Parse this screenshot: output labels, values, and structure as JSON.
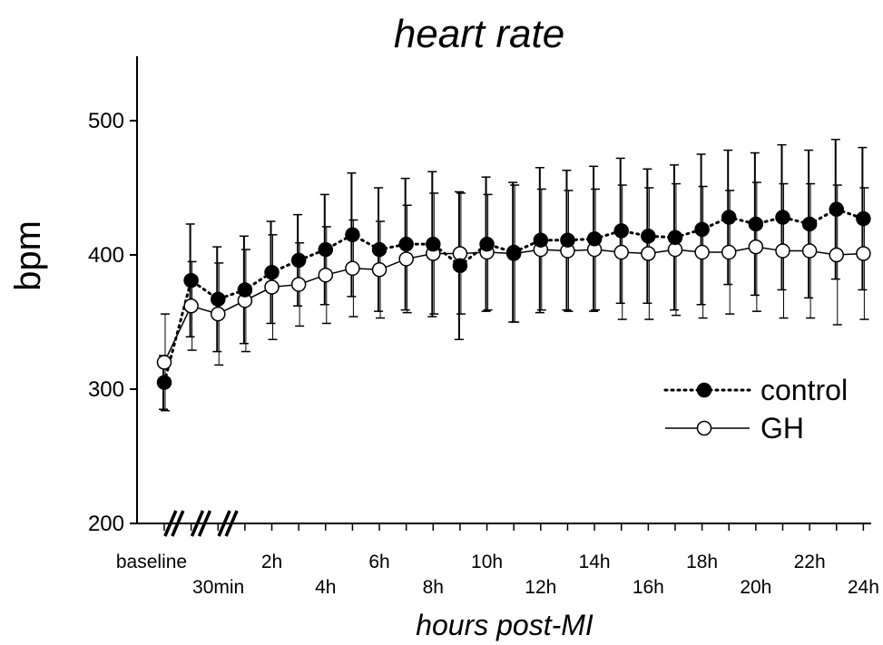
{
  "chart_data": {
    "type": "line",
    "title": "heart rate",
    "xlabel": "hours post-MI",
    "ylabel": "bpm",
    "ylim": [
      200,
      550
    ],
    "yticks": [
      200,
      300,
      400,
      500
    ],
    "x": [
      "baseline",
      "30min",
      "1h",
      "1.5h",
      "2h",
      "3h",
      "4h",
      "5h",
      "6h",
      "7h",
      "8h",
      "9h",
      "10h",
      "11h",
      "12h",
      "13h",
      "14h",
      "15h",
      "16h",
      "17h",
      "18h",
      "19h",
      "20h",
      "21h",
      "22h",
      "23h",
      "24h"
    ],
    "xtick_labels": [
      {
        "index": 0,
        "label": "baseline",
        "row": 1
      },
      {
        "index": 1,
        "label": "30min",
        "row": 2
      },
      {
        "index": 4,
        "label": "2h",
        "row": 1
      },
      {
        "index": 6,
        "label": "4h",
        "row": 2
      },
      {
        "index": 8,
        "label": "6h",
        "row": 1
      },
      {
        "index": 10,
        "label": "8h",
        "row": 2
      },
      {
        "index": 12,
        "label": "10h",
        "row": 1
      },
      {
        "index": 14,
        "label": "12h",
        "row": 2
      },
      {
        "index": 16,
        "label": "14h",
        "row": 1
      },
      {
        "index": 18,
        "label": "16h",
        "row": 2
      },
      {
        "index": 20,
        "label": "18h",
        "row": 1
      },
      {
        "index": 22,
        "label": "20h",
        "row": 2
      },
      {
        "index": 24,
        "label": "22h",
        "row": 1
      },
      {
        "index": 26,
        "label": "24h",
        "row": 2
      }
    ],
    "axis_break_after_index": [
      0,
      1,
      2
    ],
    "legend_position": "right",
    "grid": false,
    "series": [
      {
        "name": "control",
        "marker": "filled-circle",
        "line_style": "dotted",
        "color": "#000000",
        "values": [
          305,
          381,
          367,
          374,
          387,
          396,
          404,
          415,
          404,
          408,
          408,
          392,
          408,
          402,
          411,
          411,
          412,
          418,
          414,
          413,
          419,
          428,
          423,
          428,
          423,
          434,
          427
        ],
        "error": [
          20,
          42,
          39,
          40,
          38,
          34,
          41,
          46,
          46,
          49,
          54,
          55,
          50,
          52,
          54,
          52,
          54,
          54,
          50,
          54,
          56,
          50,
          53,
          54,
          55,
          52,
          53
        ]
      },
      {
        "name": "GH",
        "marker": "open-circle",
        "line_style": "solid",
        "color": "#000000",
        "values": [
          320,
          362,
          356,
          366,
          376,
          378,
          385,
          390,
          389,
          397,
          401,
          401,
          402,
          401,
          404,
          403,
          404,
          402,
          401,
          404,
          402,
          402,
          406,
          403,
          403,
          400,
          401
        ],
        "error": [
          36,
          33,
          38,
          38,
          39,
          31,
          36,
          36,
          36,
          40,
          45,
          45,
          43,
          51,
          45,
          45,
          45,
          50,
          49,
          49,
          49,
          46,
          48,
          50,
          50,
          52,
          49
        ]
      }
    ]
  }
}
